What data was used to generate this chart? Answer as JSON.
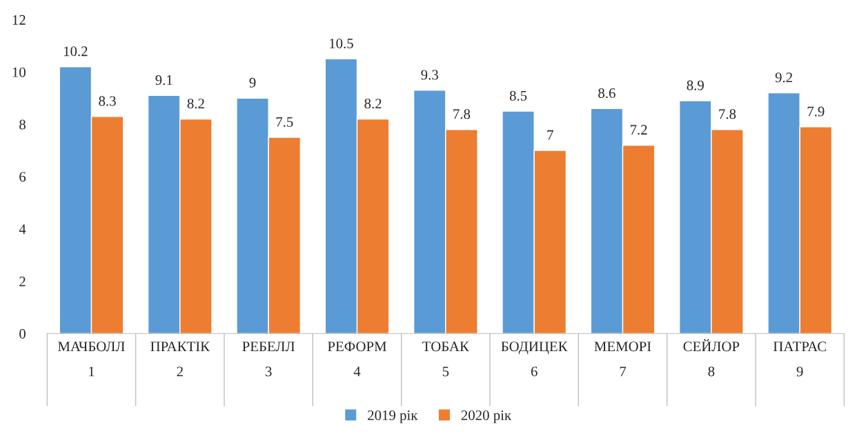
{
  "chart_data": {
    "type": "bar",
    "categories": [
      "МАЧБОЛЛ\n1",
      "ПРАКТІК\n2",
      "РЕБЕЛЛ\n3",
      "РЕФОРМ\n4",
      "ТОБАК\n5",
      "БОДИЦЕК\n6",
      "МЕМОРІ\n7",
      "СЕЙЛОР\n8",
      "ПАТРАС\n9"
    ],
    "series": [
      {
        "name": "2019 рік",
        "color": "#5b9bd5",
        "values": [
          10.2,
          9.1,
          9,
          10.5,
          9.3,
          8.5,
          8.6,
          8.9,
          9.2
        ]
      },
      {
        "name": "2020 рік",
        "color": "#ed7d31",
        "values": [
          8.3,
          8.2,
          7.5,
          8.2,
          7.8,
          7,
          7.2,
          7.8,
          7.9
        ]
      }
    ],
    "ylim": [
      0,
      12
    ],
    "yticks": [
      0,
      2,
      4,
      6,
      8,
      10,
      12
    ],
    "data_labels": true,
    "grid": false,
    "legend": "bottom"
  }
}
